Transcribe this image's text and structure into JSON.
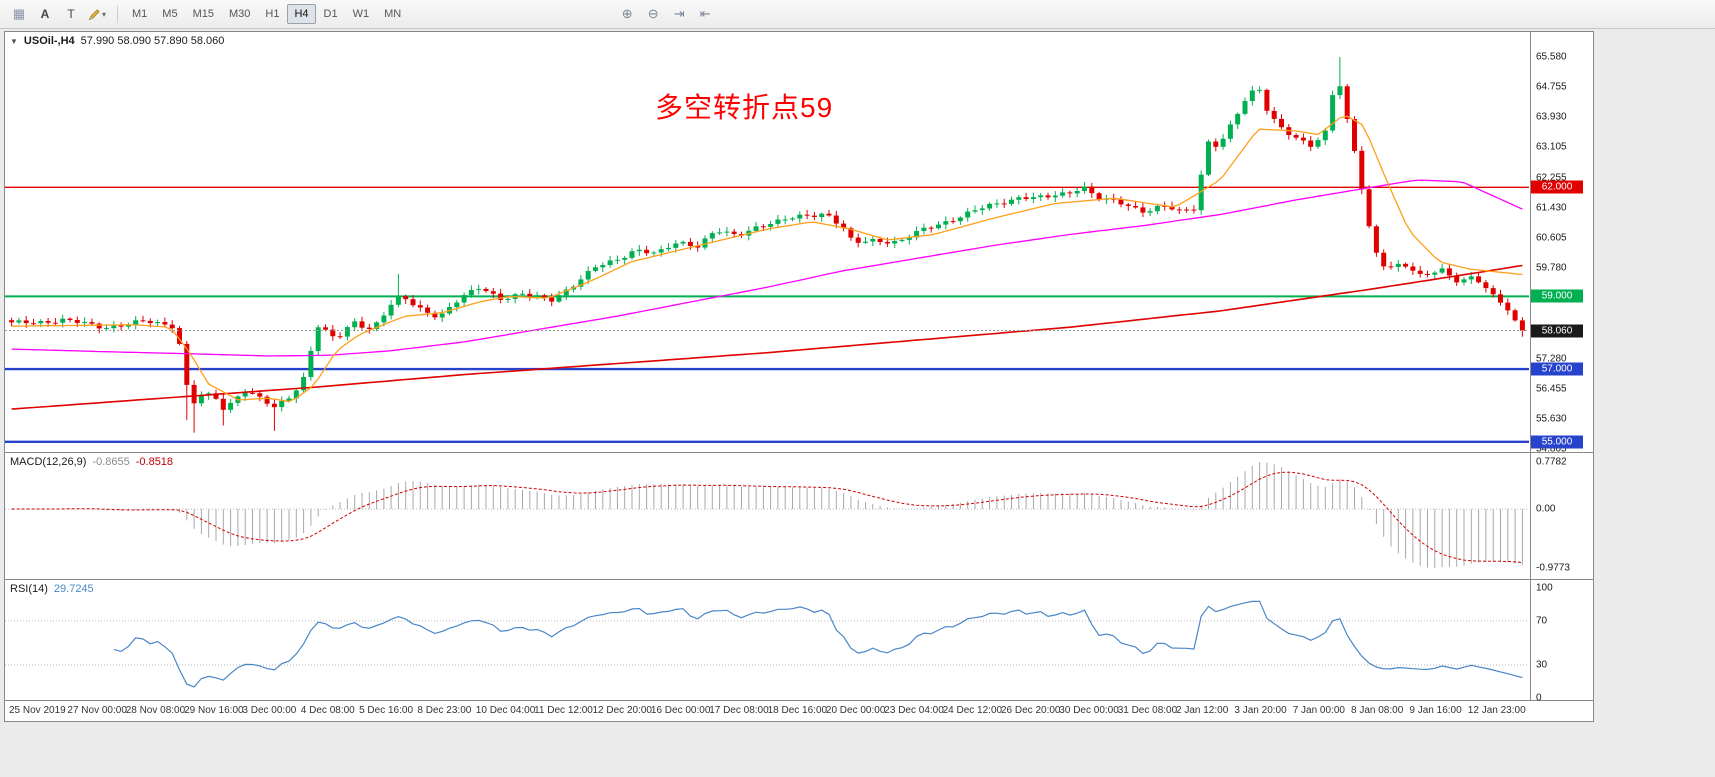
{
  "toolbar": {
    "tool_buttons": [
      {
        "name": "chart-grid",
        "glyph": "▦"
      },
      {
        "name": "text-annotation",
        "glyph": "A"
      },
      {
        "name": "text-label",
        "glyph": "T"
      },
      {
        "name": "draw-tool",
        "svg": "pencil",
        "caret": "▾"
      }
    ],
    "timeframes": [
      "M1",
      "M5",
      "M15",
      "M30",
      "H1",
      "H4",
      "D1",
      "W1",
      "MN"
    ],
    "active_timeframe": "H4",
    "extra_icons": [
      {
        "name": "zoom-in",
        "glyph": "⊕"
      },
      {
        "name": "zoom-out",
        "glyph": "⊖"
      },
      {
        "name": "auto-scroll",
        "glyph": "⇥"
      },
      {
        "name": "chart-shift",
        "glyph": "⇤"
      }
    ]
  },
  "chart": {
    "header": {
      "collapse_glyph": "▼",
      "title": "USOil-,H4",
      "ohlc": "57.990 58.090 57.890 58.060"
    },
    "annotation": {
      "text": "多空转折点59",
      "color": "#ff0000"
    }
  },
  "chart_data": {
    "type": "candlestick",
    "symbol": "USOil",
    "timeframe": "H4",
    "ohlc_display": {
      "open": "57.990",
      "high": "58.090",
      "low": "57.890",
      "close": "58.060"
    },
    "style": {
      "up": "#00b050",
      "down": "#e00000",
      "ma_fast": "#ff9f1a",
      "ma_mid": "#ff00ff",
      "ma_slow": "#e00000",
      "macd_hist": "#a8a8a8",
      "macd_signal": "#d00000",
      "rsi_line": "#4a86c8",
      "current_price_line": "#999999"
    },
    "price_axis": {
      "min": 54.72,
      "max": 66.27,
      "ticks": [
        "65.580",
        "64.755",
        "63.930",
        "63.105",
        "62.255",
        "61.430",
        "60.605",
        "59.780",
        "57.280",
        "56.455",
        "55.630",
        "54.805"
      ]
    },
    "level_lines": [
      {
        "price": 62.0,
        "label": "62.000",
        "color": "#e00000",
        "width": 1.4
      },
      {
        "price": 59.0,
        "label": "59.000",
        "color": "#00b050",
        "width": 2
      },
      {
        "price": 57.0,
        "label": "57.000",
        "color": "#2743cc",
        "width": 2.4
      },
      {
        "price": 55.0,
        "label": "55.000",
        "color": "#2743cc",
        "width": 2.4
      }
    ],
    "current_price": {
      "value": 58.06,
      "label": "58.060",
      "box_color": "#1a1a1a"
    },
    "candles": {
      "count": 208,
      "path": [
        [
          0.0,
          58.25
        ],
        [
          0.034,
          58.35
        ],
        [
          0.061,
          58.15
        ],
        [
          0.087,
          58.3
        ],
        [
          0.107,
          58.2
        ],
        [
          0.112,
          57.6
        ],
        [
          0.118,
          56.0
        ],
        [
          0.127,
          56.3
        ],
        [
          0.135,
          56.2
        ],
        [
          0.141,
          55.85
        ],
        [
          0.153,
          56.45
        ],
        [
          0.165,
          56.2
        ],
        [
          0.174,
          55.9
        ],
        [
          0.184,
          56.25
        ],
        [
          0.192,
          56.6
        ],
        [
          0.197,
          57.3
        ],
        [
          0.201,
          58.25
        ],
        [
          0.207,
          58.05
        ],
        [
          0.215,
          57.8
        ],
        [
          0.227,
          58.3
        ],
        [
          0.238,
          58.1
        ],
        [
          0.251,
          58.75
        ],
        [
          0.258,
          59.0
        ],
        [
          0.268,
          58.7
        ],
        [
          0.283,
          58.45
        ],
        [
          0.296,
          58.9
        ],
        [
          0.31,
          59.25
        ],
        [
          0.324,
          58.95
        ],
        [
          0.338,
          59.05
        ],
        [
          0.357,
          58.9
        ],
        [
          0.373,
          59.35
        ],
        [
          0.387,
          59.8
        ],
        [
          0.4,
          60.0
        ],
        [
          0.413,
          60.3
        ],
        [
          0.427,
          60.15
        ],
        [
          0.441,
          60.5
        ],
        [
          0.454,
          60.4
        ],
        [
          0.466,
          60.8
        ],
        [
          0.48,
          60.65
        ],
        [
          0.494,
          60.95
        ],
        [
          0.507,
          61.05
        ],
        [
          0.523,
          61.2
        ],
        [
          0.539,
          61.3
        ],
        [
          0.55,
          60.9
        ],
        [
          0.557,
          60.45
        ],
        [
          0.571,
          60.55
        ],
        [
          0.587,
          60.5
        ],
        [
          0.602,
          60.8
        ],
        [
          0.621,
          61.1
        ],
        [
          0.637,
          61.35
        ],
        [
          0.653,
          61.55
        ],
        [
          0.668,
          61.75
        ],
        [
          0.684,
          61.7
        ],
        [
          0.7,
          61.85
        ],
        [
          0.709,
          62.05
        ],
        [
          0.719,
          61.7
        ],
        [
          0.734,
          61.55
        ],
        [
          0.75,
          61.35
        ],
        [
          0.762,
          61.5
        ],
        [
          0.774,
          61.3
        ],
        [
          0.785,
          61.45
        ],
        [
          0.79,
          63.3
        ],
        [
          0.799,
          63.15
        ],
        [
          0.808,
          63.75
        ],
        [
          0.819,
          64.55
        ],
        [
          0.826,
          64.7
        ],
        [
          0.832,
          64.05
        ],
        [
          0.842,
          63.6
        ],
        [
          0.851,
          63.3
        ],
        [
          0.861,
          63.1
        ],
        [
          0.871,
          63.6
        ],
        [
          0.877,
          65.35
        ],
        [
          0.882,
          64.2
        ],
        [
          0.888,
          63.2
        ],
        [
          0.894,
          61.9
        ],
        [
          0.901,
          60.3
        ],
        [
          0.91,
          59.75
        ],
        [
          0.921,
          59.95
        ],
        [
          0.933,
          59.55
        ],
        [
          0.947,
          59.7
        ],
        [
          0.958,
          59.4
        ],
        [
          0.968,
          59.6
        ],
        [
          0.979,
          59.05
        ],
        [
          0.988,
          58.75
        ],
        [
          0.995,
          58.3
        ],
        [
          1.0,
          58.06
        ]
      ],
      "wick_overrides": [
        [
          24,
          "low",
          55.6
        ],
        [
          25,
          "low",
          55.25
        ],
        [
          29,
          "low",
          55.45
        ],
        [
          36,
          "low",
          55.3
        ],
        [
          53,
          "high",
          59.62
        ],
        [
          182,
          "high",
          65.58
        ],
        [
          207,
          "low",
          57.89
        ]
      ]
    },
    "ma": {
      "fast": [
        [
          0,
          58.18
        ],
        [
          0.08,
          58.22
        ],
        [
          0.105,
          58.15
        ],
        [
          0.118,
          57.45
        ],
        [
          0.13,
          56.6
        ],
        [
          0.15,
          56.15
        ],
        [
          0.17,
          56.2
        ],
        [
          0.185,
          56.1
        ],
        [
          0.2,
          56.55
        ],
        [
          0.215,
          57.5
        ],
        [
          0.23,
          57.95
        ],
        [
          0.26,
          58.45
        ],
        [
          0.285,
          58.55
        ],
        [
          0.31,
          58.85
        ],
        [
          0.33,
          59.0
        ],
        [
          0.355,
          58.95
        ],
        [
          0.385,
          59.45
        ],
        [
          0.41,
          59.95
        ],
        [
          0.44,
          60.25
        ],
        [
          0.47,
          60.55
        ],
        [
          0.5,
          60.85
        ],
        [
          0.53,
          61.05
        ],
        [
          0.555,
          60.85
        ],
        [
          0.58,
          60.55
        ],
        [
          0.61,
          60.7
        ],
        [
          0.65,
          61.15
        ],
        [
          0.69,
          61.55
        ],
        [
          0.73,
          61.7
        ],
        [
          0.77,
          61.45
        ],
        [
          0.8,
          62.2
        ],
        [
          0.825,
          63.6
        ],
        [
          0.85,
          63.55
        ],
        [
          0.865,
          63.45
        ],
        [
          0.882,
          64.0
        ],
        [
          0.895,
          63.7
        ],
        [
          0.91,
          62.2
        ],
        [
          0.925,
          60.8
        ],
        [
          0.945,
          59.95
        ],
        [
          0.965,
          59.75
        ],
        [
          1,
          59.6
        ]
      ],
      "mid": [
        [
          0,
          57.55
        ],
        [
          0.06,
          57.48
        ],
        [
          0.12,
          57.42
        ],
        [
          0.17,
          57.36
        ],
        [
          0.21,
          57.38
        ],
        [
          0.25,
          57.5
        ],
        [
          0.3,
          57.75
        ],
        [
          0.35,
          58.1
        ],
        [
          0.4,
          58.45
        ],
        [
          0.45,
          58.85
        ],
        [
          0.5,
          59.25
        ],
        [
          0.55,
          59.7
        ],
        [
          0.6,
          60.05
        ],
        [
          0.65,
          60.4
        ],
        [
          0.7,
          60.7
        ],
        [
          0.75,
          60.95
        ],
        [
          0.8,
          61.25
        ],
        [
          0.85,
          61.65
        ],
        [
          0.9,
          62.0
        ],
        [
          0.93,
          62.2
        ],
        [
          0.96,
          62.15
        ],
        [
          1,
          61.4
        ]
      ],
      "slow": [
        [
          0,
          55.9
        ],
        [
          0.1,
          56.2
        ],
        [
          0.2,
          56.5
        ],
        [
          0.3,
          56.85
        ],
        [
          0.4,
          57.15
        ],
        [
          0.5,
          57.45
        ],
        [
          0.6,
          57.8
        ],
        [
          0.7,
          58.15
        ],
        [
          0.8,
          58.6
        ],
        [
          0.9,
          59.2
        ],
        [
          0.97,
          59.65
        ],
        [
          1,
          59.85
        ]
      ]
    },
    "macd": {
      "name": "MACD(12,26,9)",
      "value_main": "-0.8655",
      "value_signal": "-0.8518",
      "ticks": [
        "0.7782",
        "0.00",
        "-0.9773"
      ],
      "scale_max": 0.93,
      "scale_min": -1.16,
      "norm_pos": 0.7782,
      "norm_neg": 0.9773
    },
    "rsi": {
      "name": "RSI(14)",
      "value": "29.7245",
      "period": 14,
      "ticks": [
        "100",
        "70",
        "30",
        "0"
      ],
      "levels": [
        70,
        30
      ],
      "range": [
        0,
        100
      ]
    },
    "time_labels": [
      "25 Nov 2019",
      "27 Nov 00:00",
      "28 Nov 08:00",
      "29 Nov 16:00",
      "3 Dec 00:00",
      "4 Dec 08:00",
      "5 Dec 16:00",
      "8 Dec 23:00",
      "10 Dec 04:00",
      "11 Dec 12:00",
      "12 Dec 20:00",
      "16 Dec 00:00",
      "17 Dec 08:00",
      "18 Dec 16:00",
      "20 Dec 00:00",
      "23 Dec 04:00",
      "24 Dec 12:00",
      "26 Dec 20:00",
      "30 Dec 00:00",
      "31 Dec 08:00",
      "2 Jan 12:00",
      "3 Jan 20:00",
      "7 Jan 00:00",
      "8 Jan 08:00",
      "9 Jan 16:00",
      "12 Jan 23:00"
    ]
  }
}
